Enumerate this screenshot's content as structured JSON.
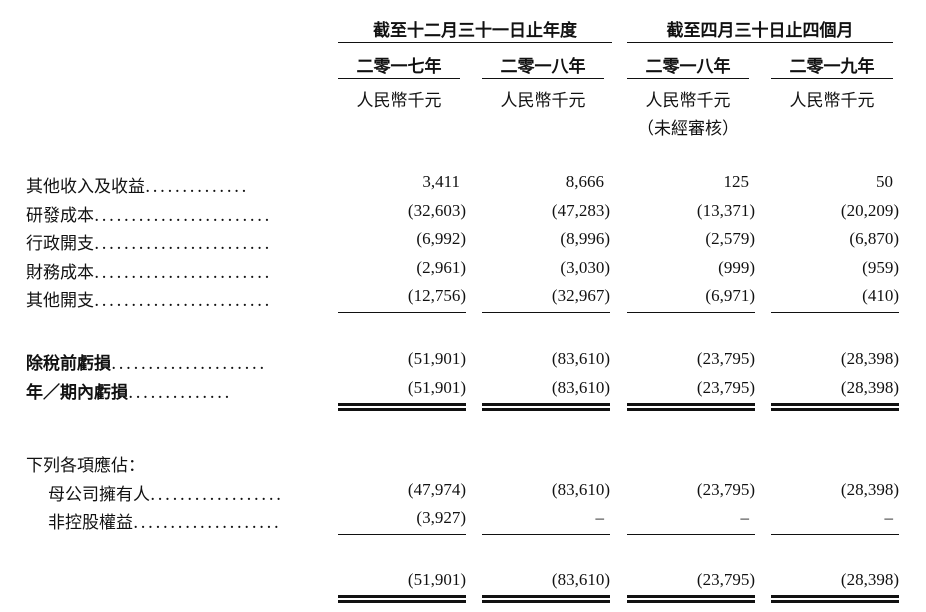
{
  "header": {
    "group_year": "截至十二月三十一日止年度",
    "group_four": "截至四月三十日止四個月",
    "cols": [
      {
        "year": "二零一七年",
        "unit": "人民幣千元",
        "note": ""
      },
      {
        "year": "二零一八年",
        "unit": "人民幣千元",
        "note": ""
      },
      {
        "year": "二零一八年",
        "unit": "人民幣千元",
        "note": "（未經審核）"
      },
      {
        "year": "二零一九年",
        "unit": "人民幣千元",
        "note": ""
      }
    ]
  },
  "rows": [
    {
      "label": "其他收入及收益",
      "dots": "..............",
      "values": [
        "3,411",
        "8,666",
        "125",
        "50"
      ]
    },
    {
      "label": "研發成本",
      "dots": "........................",
      "values": [
        "(32,603)",
        "(47,283)",
        "(13,371)",
        "(20,209)"
      ]
    },
    {
      "label": "行政開支",
      "dots": "........................",
      "values": [
        "(6,992)",
        "(8,996)",
        "(2,579)",
        "(6,870)"
      ]
    },
    {
      "label": "財務成本",
      "dots": "........................",
      "values": [
        "(2,961)",
        "(3,030)",
        "(999)",
        "(959)"
      ]
    },
    {
      "label": "其他開支",
      "dots": "........................",
      "values": [
        "(12,756)",
        "(32,967)",
        "(6,971)",
        "(410)"
      ]
    },
    {
      "label": "除稅前虧損",
      "dots": ".....................",
      "values": [
        "(51,901)",
        "(83,610)",
        "(23,795)",
        "(28,398)"
      ]
    },
    {
      "label": "年／期內虧損",
      "dots": "..............",
      "values": [
        "(51,901)",
        "(83,610)",
        "(23,795)",
        "(28,398)"
      ]
    }
  ],
  "attributable": {
    "heading": "下列各項應佔：",
    "rows": [
      {
        "label": "母公司擁有人",
        "dots": "..................",
        "values": [
          "(47,974)",
          "(83,610)",
          "(23,795)",
          "(28,398)"
        ]
      },
      {
        "label": "非控股權益",
        "dots": "....................",
        "values": [
          "(3,927)",
          "–",
          "–",
          "–"
        ]
      }
    ],
    "total": [
      "(51,901)",
      "(83,610)",
      "(23,795)",
      "(28,398)"
    ]
  }
}
